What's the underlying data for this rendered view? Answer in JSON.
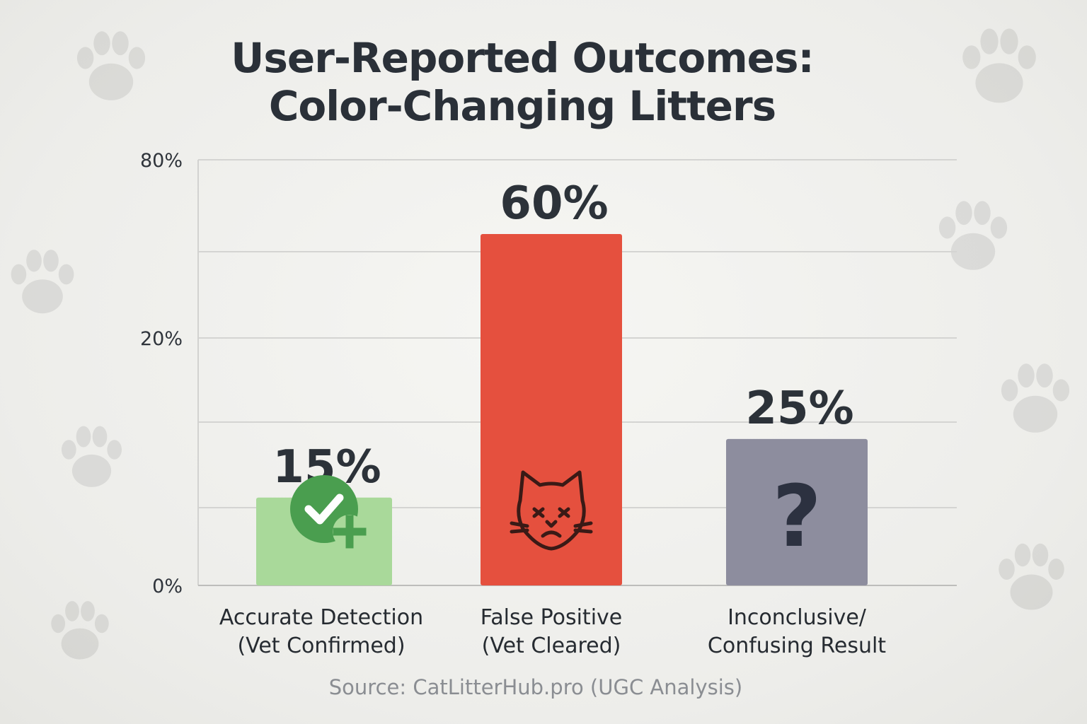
{
  "chart_data": {
    "type": "bar",
    "title_lines": [
      "User-Reported Outcomes:",
      "Color-Changing Litters"
    ],
    "categories": [
      [
        "Accurate Detection",
        "(Vet Confirmed)"
      ],
      [
        "False Positive",
        "(Vet Cleared)"
      ],
      [
        "Inconclusive/",
        "Confusing Result"
      ]
    ],
    "values": [
      15,
      60,
      25
    ],
    "value_labels": [
      "15%",
      "60%",
      "25%"
    ],
    "y_tick_labels": [
      "0%",
      "20%",
      "80%"
    ],
    "ylim": [
      0,
      80
    ],
    "grid": true,
    "bar_colors": [
      "#a9d99a",
      "#e5503e",
      "#8d8d9e"
    ],
    "bar_icons": [
      "check-plus-icon",
      "sad-cat-icon",
      "question-icon"
    ],
    "source": "Source: CatLitterHub.pro (UGC Analysis)"
  }
}
